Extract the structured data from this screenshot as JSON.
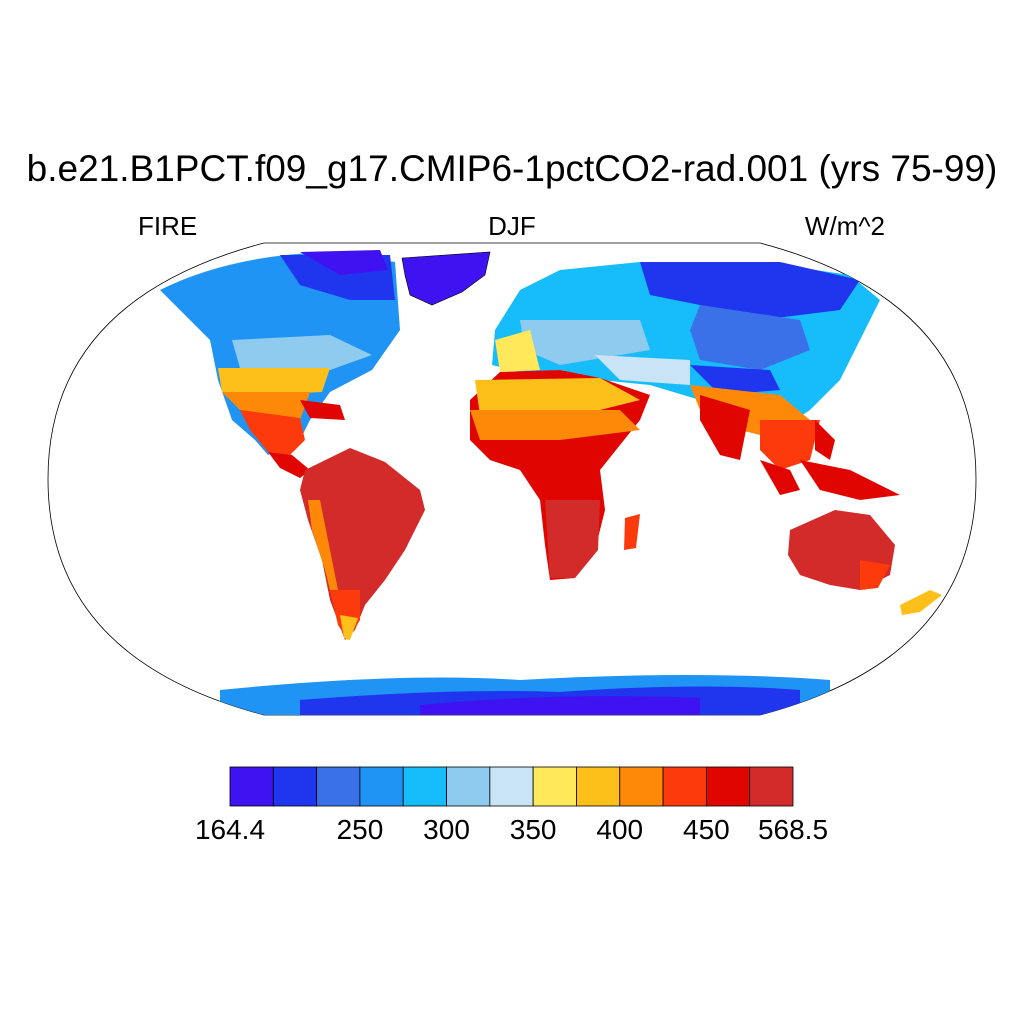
{
  "header": {
    "title": "b.e21.B1PCT.f09_g17.CMIP6-1pctCO2-rad.001 (yrs 75-99)",
    "variable": "FIRE",
    "season": "DJF",
    "units": "W/m^2"
  },
  "colorbar": {
    "colors": [
      "#3f12f2",
      "#1f36ee",
      "#3b71e8",
      "#1f94f5",
      "#17bdfb",
      "#8fcbee",
      "#c8e4f5",
      "#ffe85a",
      "#fdbf1a",
      "#fe8808",
      "#fc3a0c",
      "#e10500",
      "#d32a2a"
    ],
    "tick_labels": [
      "164.4",
      "250",
      "300",
      "350",
      "400",
      "450",
      "568.5"
    ],
    "min": 164.4,
    "max": 568.5,
    "levels": [
      164.4,
      200,
      225,
      250,
      275,
      300,
      325,
      350,
      375,
      400,
      425,
      450,
      475,
      568.5
    ]
  }
}
